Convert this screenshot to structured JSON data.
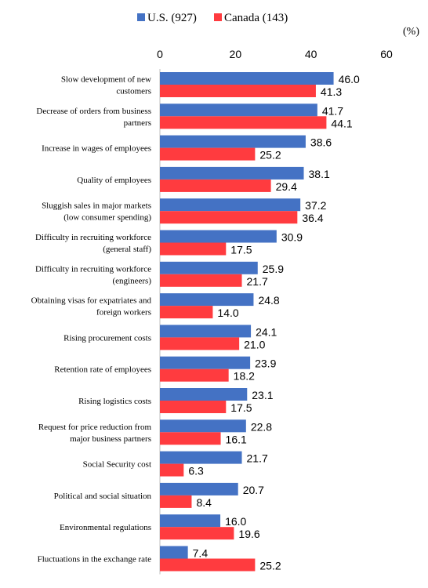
{
  "chart_data": {
    "type": "bar",
    "orientation": "horizontal",
    "unit_label": "(%)",
    "xlim": [
      0,
      60
    ],
    "xticks": [
      0,
      20,
      40,
      60
    ],
    "grid": false,
    "legend_position": "top",
    "categories": [
      [
        "Slow development of new",
        "customers"
      ],
      [
        "Decrease of orders from business",
        "partners"
      ],
      [
        "Increase in wages of employees"
      ],
      [
        "Quality of employees"
      ],
      [
        "Sluggish sales in major markets",
        "(low consumer spending)"
      ],
      [
        "Difficulty in recruiting workforce",
        "(general staff)"
      ],
      [
        "Difficulty in recruiting workforce",
        "(engineers)"
      ],
      [
        "Obtaining visas for expatriates and",
        "foreign workers"
      ],
      [
        "Rising procurement costs"
      ],
      [
        "Retention rate of employees"
      ],
      [
        "Rising logistics costs"
      ],
      [
        "Request for price reduction from",
        "major business partners"
      ],
      [
        "Social Security cost"
      ],
      [
        "Political and social situation"
      ],
      [
        "Environmental regulations"
      ],
      [
        "Fluctuations in the exchange rate"
      ]
    ],
    "series": [
      {
        "name": "U.S. (927)",
        "color": "#4472C4",
        "values": [
          46.0,
          41.7,
          38.6,
          38.1,
          37.2,
          30.9,
          25.9,
          24.8,
          24.1,
          23.9,
          23.1,
          22.8,
          21.7,
          20.7,
          16.0,
          7.4
        ]
      },
      {
        "name": "Canada (143)",
        "color": "#FF3B3F",
        "values": [
          41.3,
          44.1,
          25.2,
          29.4,
          36.4,
          17.5,
          21.7,
          14.0,
          21.0,
          18.2,
          17.5,
          16.1,
          6.3,
          8.4,
          19.6,
          25.2
        ]
      }
    ]
  }
}
